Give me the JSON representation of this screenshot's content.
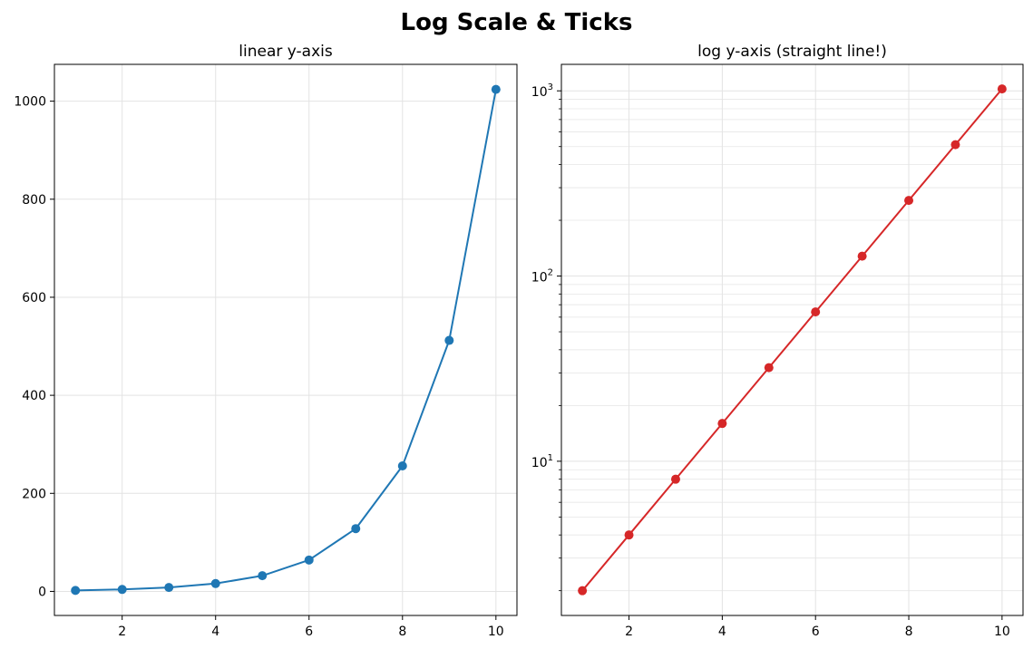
{
  "figure": {
    "title": "Log Scale & Ticks"
  },
  "chart_data": [
    {
      "type": "line",
      "title": "linear y-axis",
      "xlabel": "",
      "ylabel": "",
      "x": [
        1,
        2,
        3,
        4,
        5,
        6,
        7,
        8,
        9,
        10
      ],
      "series": [
        {
          "values": [
            2,
            4,
            8,
            16,
            32,
            64,
            128,
            256,
            512,
            1024
          ],
          "color": "#1f77b4",
          "marker": "circle"
        }
      ],
      "xlim": [
        0.55,
        10.45
      ],
      "ylim": [
        -49.1,
        1075.1
      ],
      "yscale": "linear",
      "xticks": [
        2,
        4,
        6,
        8,
        10
      ],
      "xtick_labels": [
        "2",
        "4",
        "6",
        "8",
        "10"
      ],
      "yticks": [
        0,
        200,
        400,
        600,
        800,
        1000
      ],
      "ytick_labels": [
        "0",
        "200",
        "400",
        "600",
        "800",
        "1000"
      ],
      "grid": true
    },
    {
      "type": "line",
      "title": "log y-axis (straight line!)",
      "xlabel": "",
      "ylabel": "",
      "x": [
        1,
        2,
        3,
        4,
        5,
        6,
        7,
        8,
        9,
        10
      ],
      "series": [
        {
          "values": [
            2,
            4,
            8,
            16,
            32,
            64,
            128,
            256,
            512,
            1024
          ],
          "color": "#d62728",
          "marker": "circle"
        }
      ],
      "xlim": [
        0.55,
        10.45
      ],
      "ylim": [
        1.47,
        1390
      ],
      "yscale": "log",
      "xticks": [
        2,
        4,
        6,
        8,
        10
      ],
      "xtick_labels": [
        "2",
        "4",
        "6",
        "8",
        "10"
      ],
      "yticks": [
        10,
        100,
        1000
      ],
      "ytick_labels": [
        {
          "base": "10",
          "exp": "1"
        },
        {
          "base": "10",
          "exp": "2"
        },
        {
          "base": "10",
          "exp": "3"
        }
      ],
      "minor_yticks": [
        2,
        3,
        4,
        5,
        6,
        7,
        8,
        9,
        20,
        30,
        40,
        50,
        60,
        70,
        80,
        90,
        200,
        300,
        400,
        500,
        600,
        700,
        800,
        900
      ],
      "grid": true,
      "minor_grid": true
    }
  ]
}
